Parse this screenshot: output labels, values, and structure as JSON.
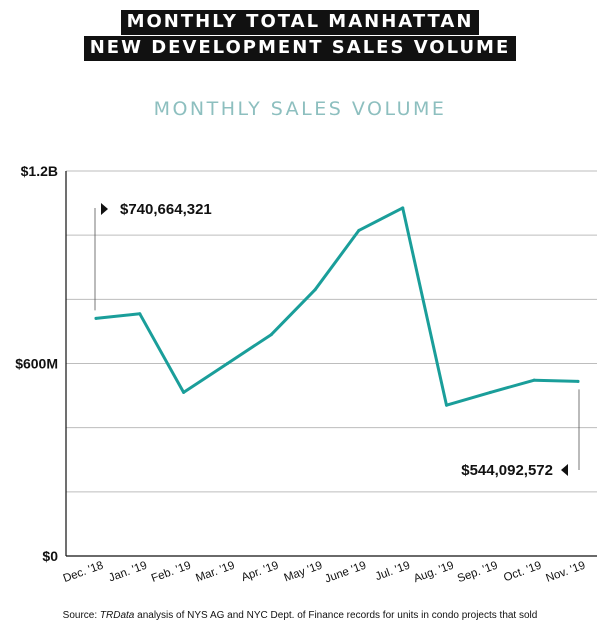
{
  "header": {
    "title_line1": "MONTHLY TOTAL MANHATTAN",
    "title_line2": "NEW DEVELOPMENT SALES VOLUME"
  },
  "chart_data": {
    "type": "line",
    "title": "MONTHLY SALES VOLUME",
    "categories": [
      "Dec. '18",
      "Jan. '19",
      "Feb. '19",
      "Mar. '19",
      "Apr. '19",
      "May '19",
      "June '19",
      "Jul. '19",
      "Aug. '19",
      "Sep. '19",
      "Oct. '19",
      "Nov. '19"
    ],
    "series": [
      {
        "name": "Monthly sales volume",
        "color": "#1a9e9a",
        "values": [
          740664321,
          755000000,
          510000000,
          600000000,
          690000000,
          830000000,
          1015000000,
          1085000000,
          470000000,
          510000000,
          548000000,
          544092572
        ]
      }
    ],
    "ylim": [
      0,
      1200000000
    ],
    "ytick_values": [
      0,
      600000000,
      1200000000
    ],
    "ytick_labels": [
      "$0",
      "$600M",
      "$1.2B"
    ],
    "gridlines": [
      200000000,
      400000000,
      600000000,
      800000000,
      1000000000,
      1200000000
    ],
    "annotations": [
      {
        "label": "$740,664,321",
        "index": 0
      },
      {
        "label": "$544,092,572",
        "index": 11
      }
    ]
  },
  "source": {
    "prefix": "Source: ",
    "italic": "TRData",
    "rest": " analysis of NYS AG and NYC Dept. of Finance records for units in condo projects that sold"
  }
}
